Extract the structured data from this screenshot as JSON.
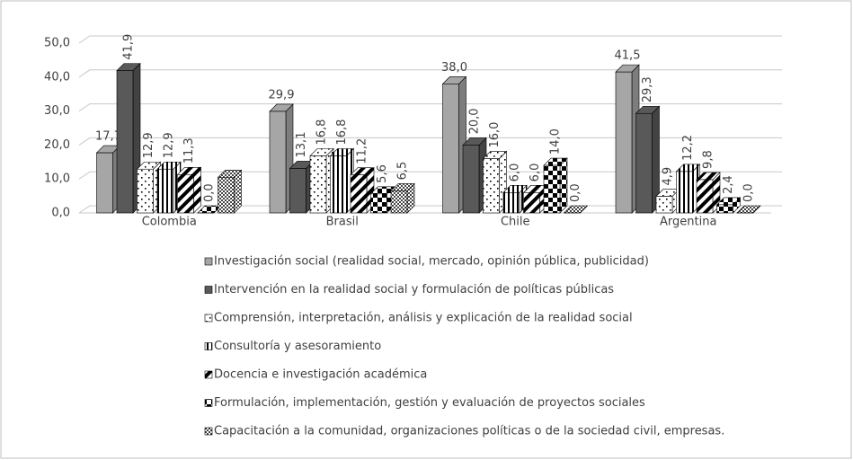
{
  "chart_data": {
    "type": "bar3d",
    "categories": [
      "Colombia",
      "Brasil",
      "Chile",
      "Argentina"
    ],
    "ylim": [
      0,
      50
    ],
    "yticks": [
      {
        "value": 0,
        "label": "0,0"
      },
      {
        "value": 10,
        "label": "10,0"
      },
      {
        "value": 20,
        "label": "20,0"
      },
      {
        "value": 30,
        "label": "30,0"
      },
      {
        "value": 40,
        "label": "40,0"
      },
      {
        "value": 50,
        "label": "50,0"
      }
    ],
    "grid": true,
    "series": [
      {
        "name": "Investigación social (realidad social, mercado, opinión pública, publicidad)",
        "color": "#a6a6a6",
        "pattern": "solid",
        "values": [
          17.7,
          29.9,
          38.0,
          41.5
        ],
        "value_labels": [
          "17,7",
          "29,9",
          "38,0",
          "41,5"
        ]
      },
      {
        "name": "Intervención en la realidad social y formulación de políticas públicas",
        "color": "#595959",
        "pattern": "solid",
        "values": [
          41.9,
          13.1,
          20.0,
          29.3
        ],
        "value_labels": [
          "41,9",
          "13,1",
          "20,0",
          "29,3"
        ]
      },
      {
        "name": "Comprensión, interpretación, análisis y explicación de la realidad social",
        "color": "#000000",
        "pattern": "dots",
        "values": [
          12.9,
          16.8,
          16.0,
          4.9
        ],
        "value_labels": [
          "12,9",
          "16,8",
          "16,0",
          "4,9"
        ]
      },
      {
        "name": "Consultoría y asesoramiento",
        "color": "#000000",
        "pattern": "vstripes",
        "values": [
          12.9,
          16.8,
          6.0,
          12.2
        ],
        "value_labels": [
          "12,9",
          "16,8",
          "6,0",
          "12,2"
        ]
      },
      {
        "name": "Docencia e investigación académica",
        "color": "#000000",
        "pattern": "diagonal",
        "values": [
          11.3,
          11.2,
          6.0,
          9.8
        ],
        "value_labels": [
          "11,3",
          "11,2",
          "6,0",
          "9,8"
        ]
      },
      {
        "name": "Formulación, implementación, gestión y evaluación de proyectos sociales",
        "color": "#000000",
        "pattern": "checker",
        "values": [
          0.0,
          5.6,
          14.0,
          2.4
        ],
        "value_labels": [
          "0,0",
          "5,6",
          "14,0",
          "2,4"
        ]
      },
      {
        "name": "Capacitación a la comunidad, organizaciones políticas o de la sociedad civil, empresas.",
        "color": "#000000",
        "pattern": "smallchecker",
        "values": [
          10.5,
          6.5,
          0.0,
          0.0
        ],
        "value_labels": [
          null,
          "6,5",
          "0,0",
          "0,0"
        ]
      }
    ]
  }
}
